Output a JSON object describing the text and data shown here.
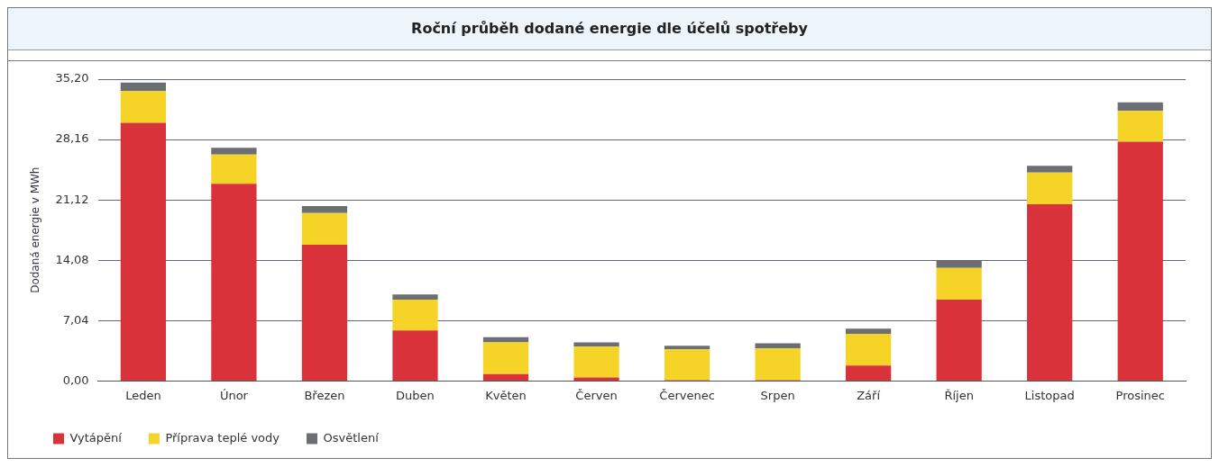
{
  "chart_data": {
    "type": "bar",
    "title": "Roční průběh dodané energie dle účelů spotřeby",
    "ylabel": "Dodaná energie v MWh",
    "categories": [
      "Leden",
      "Únor",
      "Březen",
      "Duben",
      "Květen",
      "Červen",
      "Červenec",
      "Srpen",
      "Září",
      "Říjen",
      "Listopad",
      "Prosinec"
    ],
    "series": [
      {
        "name": "Vytápění",
        "color": "#d9323a",
        "values": [
          30.1,
          23.0,
          15.9,
          5.9,
          0.8,
          0.4,
          0.1,
          0.1,
          1.8,
          9.5,
          20.6,
          27.9
        ]
      },
      {
        "name": "Příprava teplé vody",
        "color": "#f5d327",
        "values": [
          3.7,
          3.4,
          3.7,
          3.6,
          3.7,
          3.6,
          3.6,
          3.7,
          3.7,
          3.7,
          3.7,
          3.6
        ]
      },
      {
        "name": "Osvětlení",
        "color": "#6b6e72",
        "values": [
          1.0,
          0.8,
          0.8,
          0.6,
          0.6,
          0.5,
          0.4,
          0.6,
          0.6,
          0.8,
          0.8,
          1.0
        ]
      }
    ],
    "stacked": true,
    "ylim": [
      0,
      35.2
    ],
    "yticks": [
      {
        "value": 0,
        "label": "0,00"
      },
      {
        "value": 7.04,
        "label": "7,04"
      },
      {
        "value": 14.08,
        "label": "14,08"
      },
      {
        "value": 21.12,
        "label": "21,12"
      },
      {
        "value": 28.16,
        "label": "28,16"
      },
      {
        "value": 35.2,
        "label": "35,20"
      }
    ],
    "grid": "y",
    "legend": "bottom"
  }
}
